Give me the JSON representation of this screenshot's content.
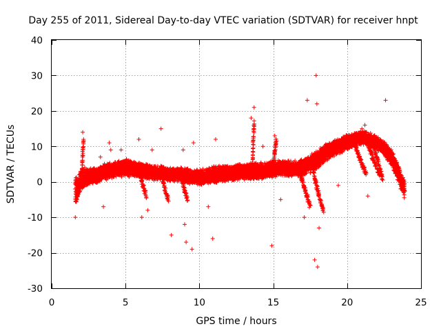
{
  "chart_data": {
    "type": "scatter",
    "title": "Day 255 of 2011, Sidereal Day-to-day VTEC variation (SDTVAR) for receiver hnpt",
    "xlabel": "GPS time / hours",
    "ylabel": "SDTVAR / TECUs",
    "xlim": [
      0,
      25
    ],
    "ylim": [
      -30,
      40
    ],
    "xticks": [
      0,
      5,
      10,
      15,
      20,
      25
    ],
    "yticks": [
      -30,
      -20,
      -10,
      0,
      10,
      20,
      30,
      40
    ],
    "xtick_labels": [
      "0",
      "5",
      "10",
      "15",
      "20",
      "25"
    ],
    "ytick_labels": [
      "-30",
      "-20",
      "-10",
      "0",
      "10",
      "20",
      "30",
      "40"
    ],
    "grid": true,
    "marker": "+",
    "color": "#ff0000",
    "main_band": {
      "description": "dense band of points, [x_hours, lower, upper] in TECU",
      "envelope": [
        [
          1.6,
          -6,
          1
        ],
        [
          1.8,
          -4,
          1.5
        ],
        [
          2.0,
          -2,
          3
        ],
        [
          2.2,
          -1,
          4
        ],
        [
          2.5,
          -0.5,
          3.5
        ],
        [
          3.0,
          0,
          3.5
        ],
        [
          3.5,
          1,
          4.5
        ],
        [
          4.0,
          1.5,
          5
        ],
        [
          4.5,
          2,
          5.5
        ],
        [
          5.0,
          2,
          6
        ],
        [
          5.5,
          2,
          5.5
        ],
        [
          6.0,
          1.5,
          5
        ],
        [
          6.5,
          1,
          4.5
        ],
        [
          7.0,
          1,
          4
        ],
        [
          7.5,
          1,
          4
        ],
        [
          8.0,
          0.5,
          3.5
        ],
        [
          8.5,
          0.5,
          3.5
        ],
        [
          9.0,
          0,
          3.5
        ],
        [
          9.5,
          0,
          3
        ],
        [
          10.0,
          -0.5,
          3
        ],
        [
          10.5,
          0,
          3.5
        ],
        [
          11.0,
          0,
          4
        ],
        [
          11.5,
          0.5,
          4
        ],
        [
          12.0,
          0.5,
          4
        ],
        [
          12.5,
          1,
          4.5
        ],
        [
          13.0,
          1,
          4.5
        ],
        [
          13.5,
          1,
          5
        ],
        [
          14.0,
          1,
          5
        ],
        [
          14.5,
          1.5,
          5
        ],
        [
          15.0,
          1.5,
          5.5
        ],
        [
          15.5,
          2,
          5.5
        ],
        [
          16.0,
          2,
          5.5
        ],
        [
          16.5,
          2,
          5.5
        ],
        [
          17.0,
          2,
          6
        ],
        [
          17.5,
          3,
          7
        ],
        [
          18.0,
          4,
          8.5
        ],
        [
          18.5,
          6,
          10
        ],
        [
          19.0,
          7.5,
          11
        ],
        [
          19.5,
          8.5,
          12
        ],
        [
          20.0,
          9.5,
          13
        ],
        [
          20.5,
          10.5,
          13.5
        ],
        [
          21.0,
          11,
          14
        ],
        [
          21.5,
          10.5,
          13.5
        ],
        [
          22.0,
          9.5,
          12.5
        ],
        [
          22.5,
          8,
          11
        ],
        [
          23.0,
          5,
          8.5
        ],
        [
          23.3,
          2,
          6
        ],
        [
          23.6,
          -1,
          3
        ],
        [
          23.9,
          -5,
          0
        ]
      ]
    },
    "branches": [
      {
        "x": [
          5.8,
          6.1,
          6.4
        ],
        "y": [
          4,
          0,
          -4
        ]
      },
      {
        "x": [
          7.3,
          7.6,
          7.9
        ],
        "y": [
          3,
          -1,
          -5
        ]
      },
      {
        "x": [
          8.6,
          8.9,
          9.2
        ],
        "y": [
          3,
          -1,
          -5
        ]
      },
      {
        "x": [
          16.6,
          16.9,
          17.2,
          17.5
        ],
        "y": [
          5,
          1,
          -3,
          -7
        ]
      },
      {
        "x": [
          17.6,
          17.8,
          18.1,
          18.4
        ],
        "y": [
          6,
          1,
          -4,
          -8
        ]
      },
      {
        "x": [
          20.4,
          20.9,
          21.3
        ],
        "y": [
          12,
          6,
          2
        ]
      },
      {
        "x": [
          21.2,
          21.7,
          22.2
        ],
        "y": [
          13,
          7,
          2
        ]
      },
      {
        "x": [
          21.6,
          22.0,
          22.4
        ],
        "y": [
          12,
          7,
          1
        ]
      }
    ],
    "spikes": [
      {
        "x": [
          2.05,
          2.15
        ],
        "y": [
          3,
          12
        ]
      },
      {
        "x": [
          15.0,
          15.2
        ],
        "y": [
          5,
          12
        ]
      },
      {
        "x": [
          13.6,
          13.7
        ],
        "y": [
          6,
          17
        ]
      }
    ],
    "outliers": [
      [
        1.6,
        -10
      ],
      [
        2.1,
        14
      ],
      [
        3.3,
        7
      ],
      [
        3.5,
        -7
      ],
      [
        3.9,
        11
      ],
      [
        4.0,
        9
      ],
      [
        4.7,
        9
      ],
      [
        5.9,
        12
      ],
      [
        6.1,
        -10
      ],
      [
        6.5,
        -8
      ],
      [
        6.8,
        9
      ],
      [
        7.4,
        15
      ],
      [
        8.1,
        -15
      ],
      [
        8.9,
        9
      ],
      [
        9.0,
        -12
      ],
      [
        9.1,
        -17
      ],
      [
        9.5,
        -19
      ],
      [
        9.6,
        11
      ],
      [
        10.6,
        -7
      ],
      [
        10.9,
        -16
      ],
      [
        11.1,
        12
      ],
      [
        13.5,
        18
      ],
      [
        13.7,
        21
      ],
      [
        14.3,
        10
      ],
      [
        14.9,
        -18
      ],
      [
        15.1,
        13
      ],
      [
        15.5,
        -5
      ],
      [
        17.1,
        -10
      ],
      [
        17.3,
        23
      ],
      [
        17.9,
        30
      ],
      [
        17.95,
        22
      ],
      [
        17.8,
        -22
      ],
      [
        18.0,
        -24
      ],
      [
        18.1,
        -13
      ],
      [
        19.4,
        -1
      ],
      [
        22.6,
        23
      ],
      [
        21.4,
        -4
      ],
      [
        21.2,
        16
      ],
      [
        21.0,
        15
      ]
    ]
  }
}
